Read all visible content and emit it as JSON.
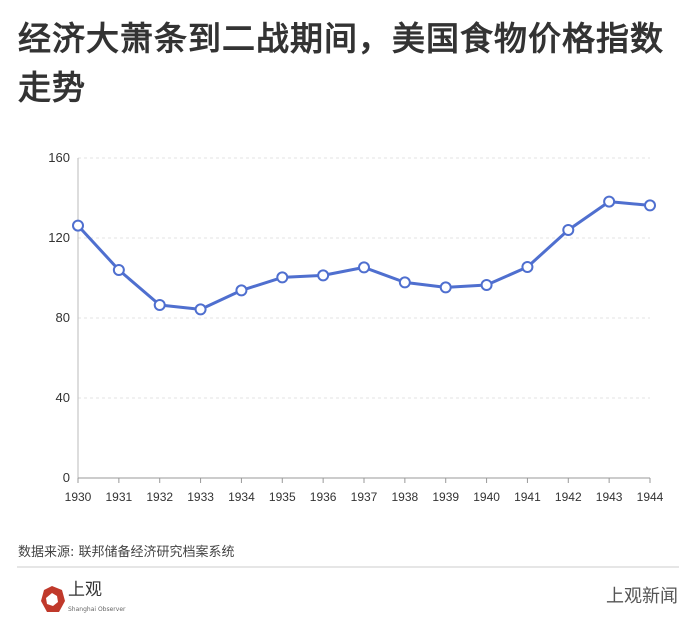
{
  "title": "经济大萧条到二战期间，美国食物价格指数走势",
  "source": "数据来源: 联邦储备经济研究档案系统",
  "logo": {
    "name": "上观",
    "subtitle": "Shanghai Observer"
  },
  "brand": "上观新闻",
  "colors": {
    "line": "#4f6fcf",
    "logo": "#c0392b"
  },
  "chart_data": {
    "type": "line",
    "categories": [
      "1930",
      "1931",
      "1932",
      "1933",
      "1934",
      "1935",
      "1936",
      "1937",
      "1938",
      "1939",
      "1940",
      "1941",
      "1942",
      "1943",
      "1944"
    ],
    "values": [
      126.2,
      104,
      86.5,
      84.3,
      93.8,
      100.3,
      101.3,
      105.3,
      97.8,
      95.3,
      96.5,
      105.5,
      124,
      138.2,
      136.3
    ],
    "ylim": [
      0,
      160
    ],
    "yticks": [
      0,
      40,
      80,
      120,
      160
    ],
    "grid": true,
    "markers": "hollow-circle"
  }
}
